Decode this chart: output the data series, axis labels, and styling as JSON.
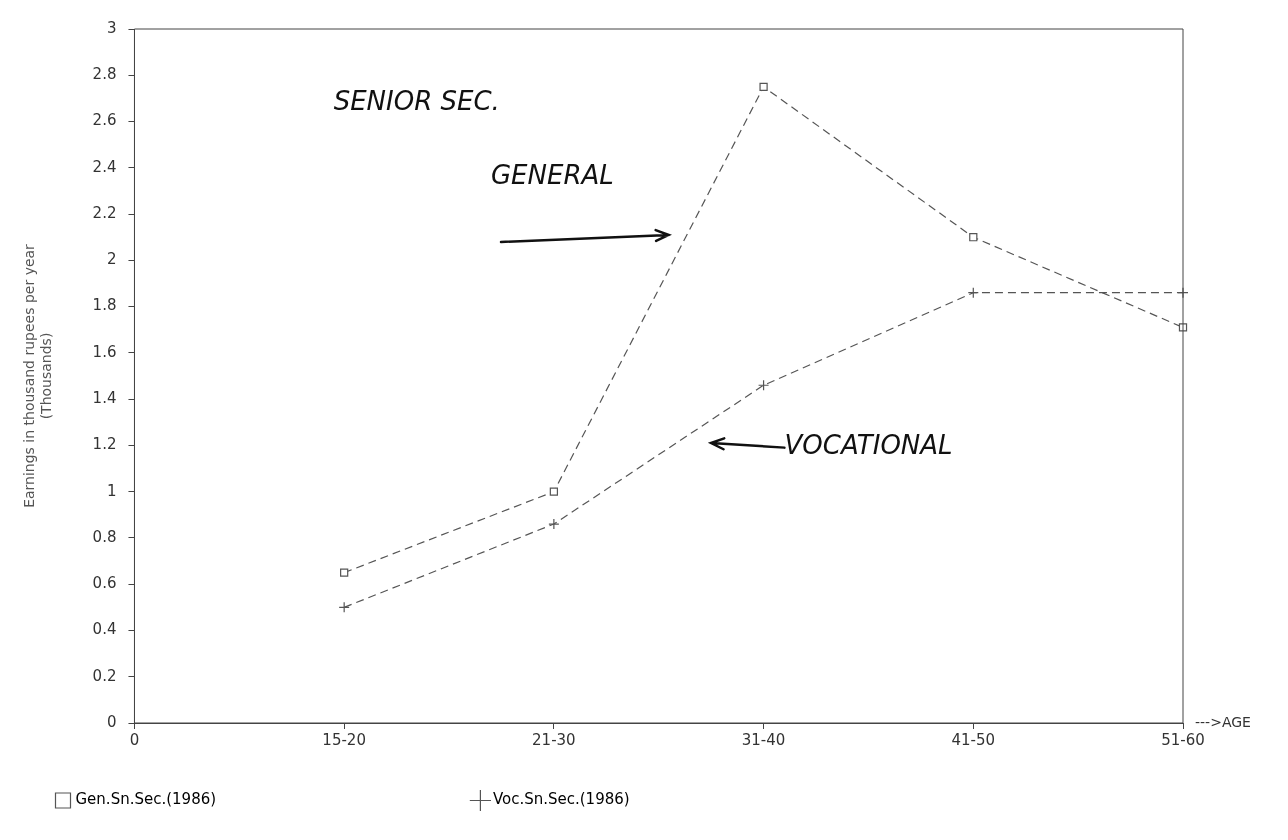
{
  "chart_data": {
    "type": "line",
    "ylabel": "Earnings in thousand rupees per year\n(Thousands)",
    "xlabel": "--->AGE",
    "categories": [
      "0",
      "15-20",
      "21-30",
      "31-40",
      "41-50",
      "51-60"
    ],
    "series": [
      {
        "name": "Gen.Sn.Sec.(1986)",
        "color": "#555555",
        "marker": "square",
        "line_style": "dashed",
        "values": [
          null,
          0.65,
          1.0,
          2.75,
          2.1,
          1.71
        ]
      },
      {
        "name": "Voc.Sn.Sec.(1986)",
        "color": "#555555",
        "marker": "cross",
        "line_style": "dashed",
        "values": [
          null,
          0.5,
          0.86,
          1.46,
          1.86,
          1.86
        ]
      }
    ],
    "ylim": [
      0,
      3
    ],
    "yticks": [
      0,
      0.2,
      0.4,
      0.6,
      0.8,
      1,
      1.2,
      1.4,
      1.6,
      1.8,
      2,
      2.2,
      2.4,
      2.6,
      2.8,
      3
    ],
    "grid": false,
    "legend": "bottom",
    "annotations": [
      "SENIOR SEC.",
      "GENERAL",
      "VOCATIONAL"
    ]
  }
}
